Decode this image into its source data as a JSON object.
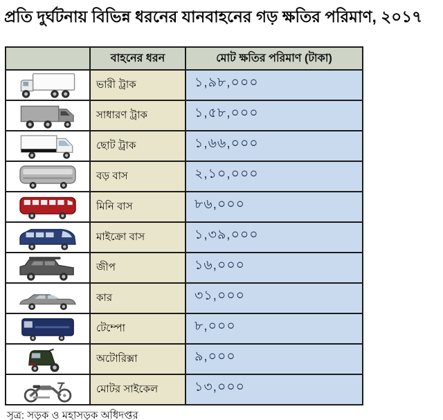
{
  "title": "প্রতি দুর্ঘটনায় বিভিন্ন ধরনের যানবাহনের গড় ক্ষতির পরিমাণ, ২০১৭",
  "table": {
    "headers": {
      "icon_column": "",
      "vehicle_type": "বাহনের ধরন",
      "amount": "মোট ক্ষতির পরিমাণ (টাকা)"
    },
    "rows": [
      {
        "icon": "heavy-truck-icon",
        "type": "ভারী ট্রাক",
        "amount": "১,৯৮,০০০"
      },
      {
        "icon": "general-truck-icon",
        "type": "সাধারণ ট্রাক",
        "amount": "১,৫৮,০০০"
      },
      {
        "icon": "small-truck-icon",
        "type": "ছোট ট্রাক",
        "amount": "১,৬৬,০০০"
      },
      {
        "icon": "big-bus-icon",
        "type": "বড় বাস",
        "amount": "২,১০,০০০"
      },
      {
        "icon": "mini-bus-icon",
        "type": "মিনি বাস",
        "amount": "৮৬,০০০"
      },
      {
        "icon": "micro-bus-icon",
        "type": "মাইক্রো বাস",
        "amount": "১,৩৯,০০০"
      },
      {
        "icon": "jeep-icon",
        "type": "জীপ",
        "amount": "১৬,০০০"
      },
      {
        "icon": "car-icon",
        "type": "কার",
        "amount": "৩১,০০০"
      },
      {
        "icon": "tempo-icon",
        "type": "টেম্পো",
        "amount": "৮,০০০"
      },
      {
        "icon": "auto-rickshaw-icon",
        "type": "অটোরিক্সা",
        "amount": "৯,০০০"
      },
      {
        "icon": "motorcycle-icon",
        "type": "মোটর সাইকেল",
        "amount": "১৩,০০০"
      }
    ]
  },
  "source": "সূত্র: সড়ক ও মহাসড়ক অধিদপ্তর",
  "colors": {
    "header_bg": "#ced4c6",
    "type_column_bg": "#e9e5ca",
    "amount_column_bg": "#c9daee",
    "amount_text": "#243a5a",
    "border": "#1b1b1b",
    "mini_bus_red": "#b01d20",
    "micro_bus_blue": "#2b4077",
    "tempo_blue": "#203065",
    "auto_rickshaw_green": "#2c3a26"
  },
  "chart_data": {
    "type": "table",
    "title": "প্রতি দুর্ঘটনায় বিভিন্ন ধরনের যানবাহনের গড় ক্ষতির পরিমাণ, ২০১৭",
    "columns": [
      "বাহনের ধরন",
      "মোট ক্ষতির পরিমাণ (টাকা)"
    ],
    "categories": [
      "ভারী ট্রাক",
      "সাধারণ ট্রাক",
      "ছোট ট্রাক",
      "বড় বাস",
      "মিনি বাস",
      "মাইক্রো বাস",
      "জীপ",
      "কার",
      "টেম্পো",
      "অটোরিক্সা",
      "মোটর সাইকেল"
    ],
    "values": [
      198000,
      158000,
      166000,
      210000,
      86000,
      139000,
      16000,
      31000,
      8000,
      9000,
      13000
    ],
    "values_bengali": [
      "১,৯৮,০০০",
      "১,৫৮,০০০",
      "১,৬৬,০০০",
      "২,১০,০০০",
      "৮৬,০০০",
      "১,৩৯,০০০",
      "১৬,০০০",
      "৩১,০০০",
      "৮,০০০",
      "৯,০০০",
      "১৩,০০০"
    ],
    "source": "সূত্র: সড়ক ও মহাসড়ক অধিদপ্তর"
  }
}
